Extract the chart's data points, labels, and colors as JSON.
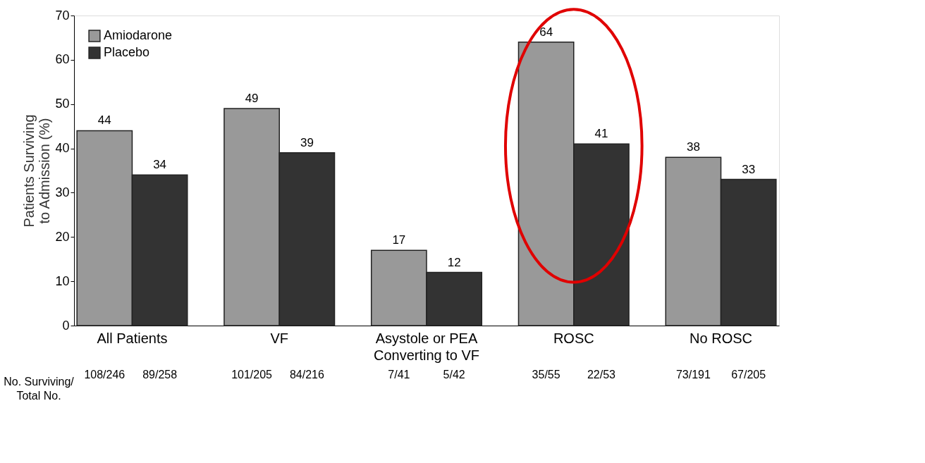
{
  "chart_data": {
    "type": "bar",
    "ylabel": "Patients Surviving\nto Admission (%)",
    "categories": [
      "All Patients",
      "VF",
      "Asystole or PEA\nConverting to VF",
      "ROSC",
      "No ROSC"
    ],
    "series": [
      {
        "name": "Amiodarone",
        "color": "#999999",
        "values": [
          44,
          49,
          17,
          64,
          38
        ]
      },
      {
        "name": "Placebo",
        "color": "#333333",
        "values": [
          34,
          39,
          12,
          41,
          33
        ]
      }
    ],
    "ylim": [
      0,
      70
    ],
    "yticks": [
      0,
      10,
      20,
      30,
      40,
      50,
      60,
      70
    ],
    "data_labels": true,
    "grid": false,
    "legend": "top left",
    "annotations": [
      "No. Surviving/\nTotal No.",
      "108/246",
      "89/258",
      "101/205",
      "84/216",
      "7/41",
      "5/42",
      "35/55",
      "22/53",
      "73/191",
      "67/205"
    ]
  }
}
